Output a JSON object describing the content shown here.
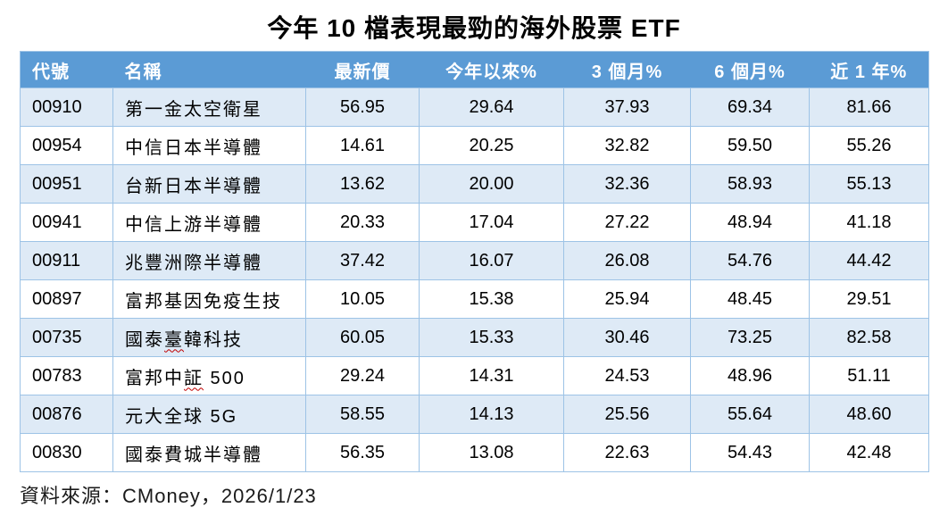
{
  "title": "今年 10 檔表現最勁的海外股票 ETF",
  "source_note": "資料來源：CMoney，2026/1/23",
  "colors": {
    "header_bg": "#5B9BD5",
    "header_text": "#FFFFFF",
    "band_row_bg": "#DEEAF6",
    "plain_row_bg": "#FFFFFF",
    "table_border": "#9DC3E6",
    "misspell_underline": "#C00000"
  },
  "table": {
    "columns": [
      {
        "key": "code",
        "label": "代號",
        "align": "left"
      },
      {
        "key": "name",
        "label": "名稱",
        "align": "left"
      },
      {
        "key": "price",
        "label": "最新價",
        "align": "center"
      },
      {
        "key": "ytd",
        "label": "今年以來%",
        "align": "center"
      },
      {
        "key": "m3",
        "label": "3 個月%",
        "align": "center"
      },
      {
        "key": "m6",
        "label": "6 個月%",
        "align": "center"
      },
      {
        "key": "y1",
        "label": "近 1 年%",
        "align": "center"
      }
    ],
    "rows": [
      {
        "cells": {
          "code": "00910",
          "name": "第一金太空衛星",
          "price": "56.95",
          "ytd": "29.64",
          "m3": "37.93",
          "m6": "69.34",
          "y1": "81.66"
        }
      },
      {
        "cells": {
          "code": "00954",
          "name": "中信日本半導體",
          "price": "14.61",
          "ytd": "20.25",
          "m3": "32.82",
          "m6": "59.50",
          "y1": "55.26"
        }
      },
      {
        "cells": {
          "code": "00951",
          "name": "台新日本半導體",
          "price": "13.62",
          "ytd": "20.00",
          "m3": "32.36",
          "m6": "58.93",
          "y1": "55.13"
        }
      },
      {
        "cells": {
          "code": "00941",
          "name": "中信上游半導體",
          "price": "20.33",
          "ytd": "17.04",
          "m3": "27.22",
          "m6": "48.94",
          "y1": "41.18"
        }
      },
      {
        "cells": {
          "code": "00911",
          "name": "兆豐洲際半導體",
          "price": "37.42",
          "ytd": "16.07",
          "m3": "26.08",
          "m6": "54.76",
          "y1": "44.42"
        }
      },
      {
        "cells": {
          "code": "00897",
          "name": "富邦基因免疫生技",
          "price": "10.05",
          "ytd": "15.38",
          "m3": "25.94",
          "m6": "48.45",
          "y1": "29.51"
        }
      },
      {
        "cells": {
          "code": "00735",
          "name": "國泰臺韓科技",
          "price": "60.05",
          "ytd": "15.33",
          "m3": "30.46",
          "m6": "73.25",
          "y1": "82.58"
        },
        "name_parts": [
          {
            "text": "國泰",
            "misspelled": false
          },
          {
            "text": "臺",
            "misspelled": true
          },
          {
            "text": "韓科技",
            "misspelled": false
          }
        ]
      },
      {
        "cells": {
          "code": "00783",
          "name": "富邦中証 500",
          "price": "29.24",
          "ytd": "14.31",
          "m3": "24.53",
          "m6": "48.96",
          "y1": "51.11"
        },
        "name_parts": [
          {
            "text": "富邦中",
            "misspelled": false
          },
          {
            "text": "証",
            "misspelled": true
          },
          {
            "text": " 500",
            "misspelled": false
          }
        ]
      },
      {
        "cells": {
          "code": "00876",
          "name": "元大全球 5G",
          "price": "58.55",
          "ytd": "14.13",
          "m3": "25.56",
          "m6": "55.64",
          "y1": "48.60"
        }
      },
      {
        "cells": {
          "code": "00830",
          "name": "國泰費城半導體",
          "price": "56.35",
          "ytd": "13.08",
          "m3": "22.63",
          "m6": "54.43",
          "y1": "42.48"
        }
      }
    ]
  },
  "chart_data": {
    "type": "table",
    "title": "今年 10 檔表現最勁的海外股票 ETF",
    "columns": [
      "代號",
      "名稱",
      "最新價",
      "今年以來%",
      "3 個月%",
      "6 個月%",
      "近 1 年%"
    ],
    "rows": [
      [
        "00910",
        "第一金太空衛星",
        56.95,
        29.64,
        37.93,
        69.34,
        81.66
      ],
      [
        "00954",
        "中信日本半導體",
        14.61,
        20.25,
        32.82,
        59.5,
        55.26
      ],
      [
        "00951",
        "台新日本半導體",
        13.62,
        20.0,
        32.36,
        58.93,
        55.13
      ],
      [
        "00941",
        "中信上游半導體",
        20.33,
        17.04,
        27.22,
        48.94,
        41.18
      ],
      [
        "00911",
        "兆豐洲際半導體",
        37.42,
        16.07,
        26.08,
        54.76,
        44.42
      ],
      [
        "00897",
        "富邦基因免疫生技",
        10.05,
        15.38,
        25.94,
        48.45,
        29.51
      ],
      [
        "00735",
        "國泰臺韓科技",
        60.05,
        15.33,
        30.46,
        73.25,
        82.58
      ],
      [
        "00783",
        "富邦中証 500",
        29.24,
        14.31,
        24.53,
        48.96,
        51.11
      ],
      [
        "00876",
        "元大全球 5G",
        58.55,
        14.13,
        25.56,
        55.64,
        48.6
      ],
      [
        "00830",
        "國泰費城半導體",
        56.35,
        13.08,
        22.63,
        54.43,
        42.48
      ]
    ],
    "source": "資料來源：CMoney，2026/1/23"
  }
}
